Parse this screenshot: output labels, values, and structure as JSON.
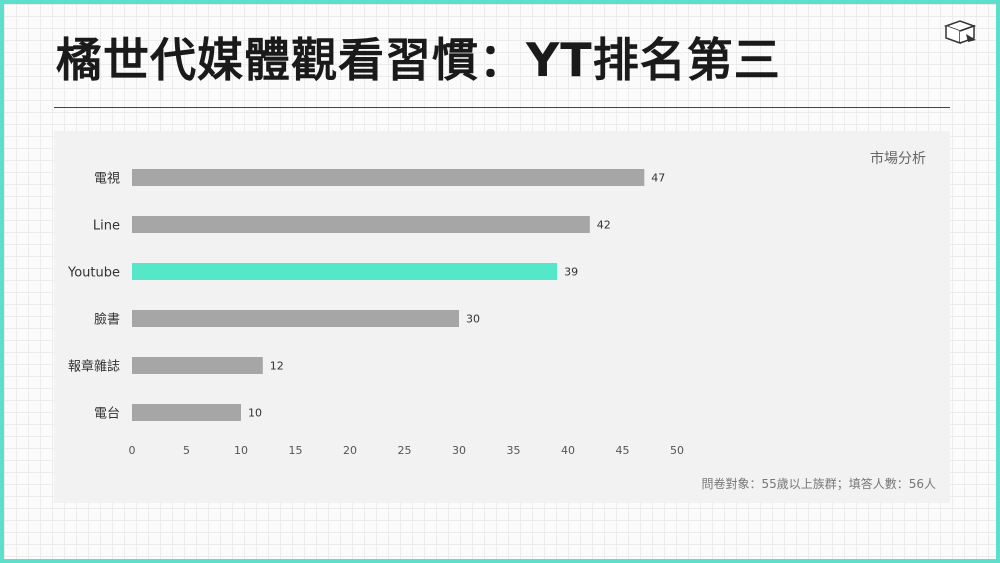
{
  "slide": {
    "title": "橘世代媒體觀看習慣：YT排名第三",
    "tag": "市場分析",
    "footnote": "問卷對象：55歲以上族群；填答人數：56人"
  },
  "colors": {
    "border": "#5ce0cc",
    "bar_default": "#a6a6a6",
    "bar_highlight": "#54e8c8"
  },
  "chart_data": {
    "type": "bar",
    "orientation": "horizontal",
    "categories": [
      "電視",
      "Line",
      "Youtube",
      "臉書",
      "報章雜誌",
      "電台"
    ],
    "values": [
      47,
      42,
      39,
      30,
      12,
      10
    ],
    "highlight": "Youtube",
    "xlim": [
      0,
      50
    ],
    "xticks": [
      0,
      5,
      10,
      15,
      20,
      25,
      30,
      35,
      40,
      45,
      50
    ],
    "grid": false,
    "legend": "none"
  }
}
